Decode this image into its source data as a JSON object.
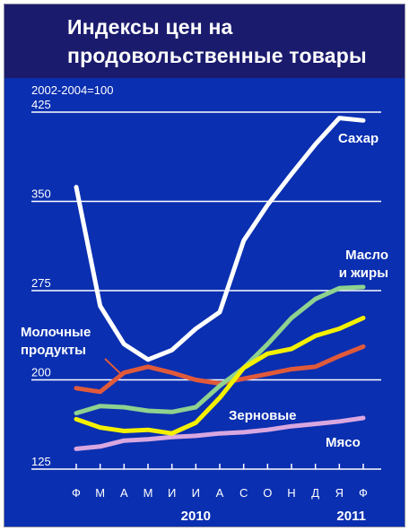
{
  "title_line1": "Индексы цен на",
  "title_line2": "продовольственные товары",
  "base_note": "2002-2004=100",
  "colors": {
    "background": "#0a2fb0",
    "header": "#1b1b6e",
    "Сахар": "#ffffff",
    "Масло и жиры": "#8fd18f",
    "Зерновые": "#f4f000",
    "Молочные продукты": "#e05a3a",
    "Мясо": "#d9a7e0",
    "grid": "#ffffff",
    "text": "#ffffff"
  },
  "chart_data": {
    "type": "line",
    "title": "Индексы цен на продовольственные товары",
    "note": "2002-2004=100",
    "categories": [
      "Ф",
      "М",
      "А",
      "М",
      "И",
      "И",
      "А",
      "С",
      "О",
      "Н",
      "Д",
      "Я",
      "Ф"
    ],
    "year_labels": [
      "2010",
      "2011"
    ],
    "yticks": [
      125,
      200,
      275,
      350,
      425
    ],
    "ylim": [
      125,
      430
    ],
    "grid": true,
    "series": [
      {
        "name": "Сахар",
        "label_lines": [
          "Сахар"
        ],
        "values": [
          362,
          262,
          230,
          217,
          225,
          243,
          257,
          317,
          347,
          373,
          398,
          420,
          418
        ]
      },
      {
        "name": "Масло и жиры",
        "label_lines": [
          "Масло",
          "и жиры"
        ],
        "values": [
          172,
          178,
          177,
          174,
          173,
          177,
          195,
          210,
          230,
          252,
          268,
          277,
          278
        ]
      },
      {
        "name": "Зерновые",
        "label_lines": [
          "Зерновые"
        ],
        "values": [
          167,
          160,
          157,
          158,
          155,
          164,
          185,
          210,
          222,
          226,
          237,
          243,
          252
        ]
      },
      {
        "name": "Молочные продукты",
        "label_lines": [
          "Молочные",
          "продукты"
        ],
        "values": [
          193,
          190,
          206,
          211,
          206,
          200,
          197,
          201,
          205,
          209,
          211,
          220,
          228
        ]
      },
      {
        "name": "Мясо",
        "label_lines": [
          "Мясо"
        ],
        "values": [
          142,
          144,
          149,
          150,
          152,
          153,
          155,
          156,
          158,
          161,
          163,
          165,
          168
        ]
      }
    ]
  }
}
